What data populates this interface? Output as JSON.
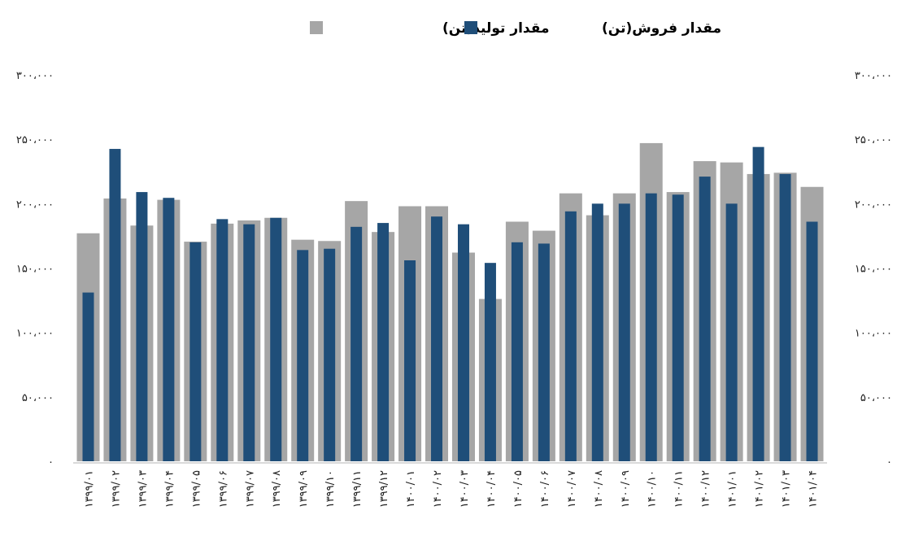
{
  "chart_data": {
    "type": "bar",
    "title": "",
    "xlabel": "",
    "ylabel": "",
    "ylim": [
      0,
      300000
    ],
    "grid": false,
    "legend_position": "top",
    "y_ticks": [
      "۰",
      "۵۰،۰۰۰",
      "۱۰۰،۰۰۰",
      "۱۵۰،۰۰۰",
      "۲۰۰،۰۰۰",
      "۲۵۰،۰۰۰",
      "۳۰۰،۰۰۰"
    ],
    "y_tick_values": [
      0,
      50000,
      100000,
      150000,
      200000,
      250000,
      300000
    ],
    "categories": [
      "۱۳۹۹/۰۱",
      "۱۳۹۹/۰۲",
      "۱۳۹۹/۰۳",
      "۱۳۹۹/۰۴",
      "۱۳۹۹/۰۵",
      "۱۳۹۹/۰۶",
      "۱۳۹۹/۰۷",
      "۱۳۹۹/۰۸",
      "۱۳۹۹/۰۹",
      "۱۳۹۹/۱۰",
      "۱۳۹۹/۱۱",
      "۱۳۹۹/۱۲",
      "۱۴۰۰/۰۱",
      "۱۴۰۰/۰۲",
      "۱۴۰۰/۰۳",
      "۱۴۰۰/۰۴",
      "۱۴۰۰/۰۵",
      "۱۴۰۰/۰۶",
      "۱۴۰۰/۰۷",
      "۱۴۰۰/۰۸",
      "۱۴۰۰/۰۹",
      "۱۴۰۰/۱۰",
      "۱۴۰۰/۱۱",
      "۱۴۰۰/۱۲",
      "۱۴۰۱/۰۱",
      "۱۴۰۱/۰۲",
      "۱۴۰۱/۰۳",
      "۱۴۰۱/۰۴"
    ],
    "series": [
      {
        "name": "مقدار تولید(تن)",
        "color": "#a6a6a6",
        "values": [
          177000,
          204000,
          183000,
          203000,
          170500,
          184500,
          187000,
          189000,
          172000,
          171000,
          202000,
          178000,
          198000,
          198000,
          162000,
          126000,
          186000,
          179000,
          208000,
          191000,
          208000,
          247000,
          209000,
          233000,
          232000,
          223000,
          224000,
          213000
        ]
      },
      {
        "name": "مقدار فروش(تن)",
        "color": "#1f4e79",
        "values": [
          131000,
          242500,
          209000,
          204500,
          170000,
          188000,
          184000,
          189000,
          164000,
          165000,
          182000,
          185000,
          156000,
          190000,
          184000,
          154000,
          170000,
          169000,
          194000,
          200000,
          200000,
          208000,
          207000,
          221000,
          200000,
          244000,
          223000,
          186000
        ]
      }
    ]
  }
}
